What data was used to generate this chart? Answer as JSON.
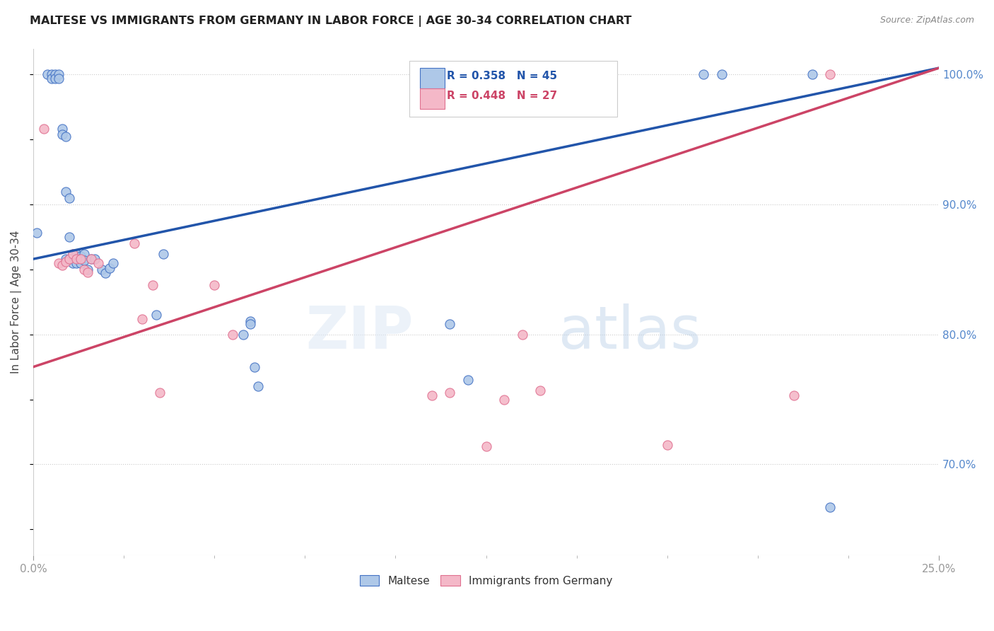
{
  "title": "MALTESE VS IMMIGRANTS FROM GERMANY IN LABOR FORCE | AGE 30-34 CORRELATION CHART",
  "source": "Source: ZipAtlas.com",
  "ylabel": "In Labor Force | Age 30-34",
  "xlim": [
    0.0,
    0.25
  ],
  "ylim": [
    0.63,
    1.02
  ],
  "ytick_positions": [
    0.7,
    0.8,
    0.9,
    1.0
  ],
  "ytick_labels": [
    "70.0%",
    "80.0%",
    "90.0%",
    "100.0%"
  ],
  "blue_R": 0.358,
  "blue_N": 45,
  "pink_R": 0.448,
  "pink_N": 27,
  "blue_color": "#aec8e8",
  "pink_color": "#f4b8c8",
  "blue_edge_color": "#4472c4",
  "pink_edge_color": "#e07090",
  "blue_line_color": "#2255aa",
  "pink_line_color": "#cc4466",
  "background_color": "#ffffff",
  "blue_scatter_x": [
    0.001,
    0.004,
    0.005,
    0.005,
    0.006,
    0.006,
    0.007,
    0.007,
    0.008,
    0.008,
    0.009,
    0.009,
    0.009,
    0.01,
    0.01,
    0.01,
    0.011,
    0.011,
    0.012,
    0.012,
    0.012,
    0.013,
    0.013,
    0.014,
    0.014,
    0.015,
    0.016,
    0.017,
    0.019,
    0.02,
    0.021,
    0.022,
    0.034,
    0.036,
    0.058,
    0.06,
    0.06,
    0.061,
    0.062,
    0.115,
    0.12,
    0.185,
    0.19,
    0.215,
    0.22
  ],
  "blue_scatter_y": [
    0.878,
    1.0,
    1.0,
    0.997,
    1.0,
    0.997,
    1.0,
    0.997,
    0.958,
    0.954,
    0.952,
    0.91,
    0.858,
    0.905,
    0.875,
    0.858,
    0.862,
    0.855,
    0.862,
    0.858,
    0.855,
    0.86,
    0.855,
    0.862,
    0.857,
    0.85,
    0.858,
    0.858,
    0.85,
    0.847,
    0.851,
    0.855,
    0.815,
    0.862,
    0.8,
    0.81,
    0.808,
    0.775,
    0.76,
    0.808,
    0.765,
    1.0,
    1.0,
    1.0,
    0.667
  ],
  "pink_scatter_x": [
    0.003,
    0.007,
    0.008,
    0.009,
    0.01,
    0.011,
    0.012,
    0.013,
    0.014,
    0.015,
    0.016,
    0.018,
    0.028,
    0.03,
    0.033,
    0.035,
    0.05,
    0.055,
    0.11,
    0.115,
    0.125,
    0.13,
    0.135,
    0.14,
    0.175,
    0.21,
    0.22
  ],
  "pink_scatter_y": [
    0.958,
    0.855,
    0.853,
    0.856,
    0.858,
    0.862,
    0.858,
    0.858,
    0.85,
    0.848,
    0.858,
    0.855,
    0.87,
    0.812,
    0.838,
    0.755,
    0.838,
    0.8,
    0.753,
    0.755,
    0.714,
    0.75,
    0.8,
    0.757,
    0.715,
    0.753,
    1.0
  ],
  "blue_line_x0": 0.0,
  "blue_line_y0": 0.858,
  "blue_line_x1": 0.25,
  "blue_line_y1": 1.005,
  "pink_line_x0": 0.0,
  "pink_line_y0": 0.775,
  "pink_line_x1": 0.25,
  "pink_line_y1": 1.005
}
